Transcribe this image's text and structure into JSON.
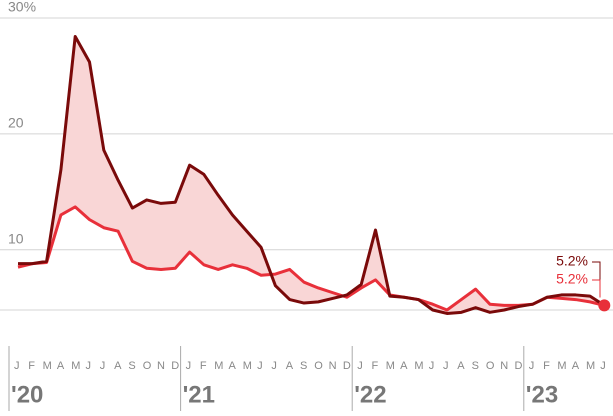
{
  "chart_data": {
    "type": "line",
    "categories": [
      "J",
      "F",
      "M",
      "A",
      "M",
      "J",
      "J",
      "A",
      "S",
      "O",
      "N",
      "D",
      "J",
      "F",
      "M",
      "A",
      "M",
      "J",
      "J",
      "A",
      "S",
      "O",
      "N",
      "D",
      "J",
      "F",
      "M",
      "A",
      "M",
      "J",
      "J",
      "A",
      "S",
      "O",
      "N",
      "D",
      "J",
      "F",
      "M",
      "A",
      "M",
      "J"
    ],
    "years": [
      "'20",
      "'21",
      "'22",
      "'23"
    ],
    "series": [
      {
        "color": "#7a0a0a",
        "values": [
          8.8,
          8.8,
          9.0,
          16.9,
          28.4,
          26.2,
          18.6,
          16.0,
          13.6,
          14.3,
          14.0,
          14.1,
          17.3,
          16.5,
          14.7,
          13.0,
          11.6,
          10.2,
          6.9,
          5.7,
          5.4,
          5.5,
          5.8,
          6.1,
          7.0,
          11.7,
          6.0,
          5.9,
          5.7,
          4.8,
          4.5,
          4.6,
          5.0,
          4.6,
          4.8,
          5.1,
          5.3,
          5.9,
          6.1,
          6.1,
          6.0,
          5.2
        ],
        "value_labels": [
          null,
          null,
          null,
          null,
          null,
          null,
          null,
          null,
          null,
          null,
          null,
          null,
          null,
          null,
          null,
          null,
          null,
          null,
          null,
          null,
          null,
          null,
          null,
          null,
          null,
          null,
          null,
          null,
          null,
          null,
          null,
          null,
          null,
          null,
          null,
          null,
          null,
          null,
          null,
          null,
          null,
          "5.2%"
        ]
      },
      {
        "color": "#e8303a",
        "values": [
          8.5,
          8.8,
          8.9,
          13.0,
          13.7,
          12.6,
          11.9,
          11.6,
          9.0,
          8.4,
          8.3,
          8.4,
          9.8,
          8.7,
          8.3,
          8.7,
          8.4,
          7.8,
          7.9,
          8.3,
          7.2,
          6.7,
          6.3,
          5.9,
          6.7,
          7.4,
          6.1,
          5.9,
          5.7,
          5.3,
          4.8,
          5.7,
          6.6,
          5.3,
          5.2,
          5.2,
          5.3,
          5.9,
          5.8,
          5.7,
          5.5,
          5.2
        ],
        "value_labels": [
          null,
          null,
          null,
          null,
          null,
          null,
          null,
          null,
          null,
          null,
          null,
          null,
          null,
          null,
          null,
          null,
          null,
          null,
          null,
          null,
          null,
          null,
          null,
          null,
          null,
          null,
          null,
          null,
          null,
          null,
          null,
          null,
          null,
          null,
          null,
          null,
          null,
          null,
          null,
          null,
          null,
          "5.2%"
        ]
      }
    ],
    "fill_color": "#f9d6d6",
    "ylim": [
      4.8,
      30
    ],
    "yticks": [
      {
        "value": 30,
        "label": "30%"
      },
      20,
      10
    ],
    "grid": true
  }
}
